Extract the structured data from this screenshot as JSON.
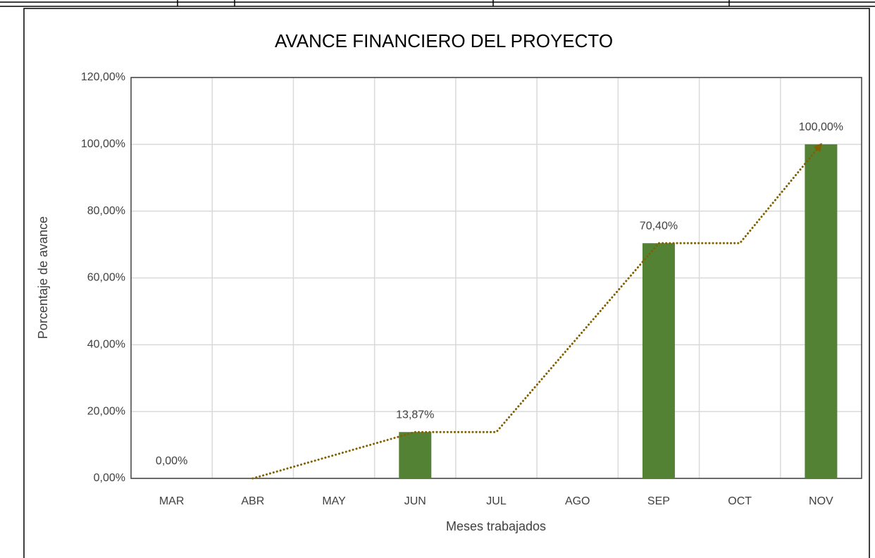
{
  "chart_data": {
    "type": "bar",
    "title": "AVANCE FINANCIERO DEL PROYECTO",
    "x_label": "Meses trabajados",
    "y_label": "Porcentaje de avance",
    "categories": [
      "MAR",
      "ABR",
      "MAY",
      "JUN",
      "JUL",
      "AGO",
      "SEP",
      "OCT",
      "NOV"
    ],
    "series": [
      {
        "type": "bar",
        "color": "#548235",
        "values": [
          0,
          null,
          null,
          13.87,
          null,
          null,
          70.4,
          null,
          100
        ],
        "value_labels": [
          "0,00%",
          null,
          null,
          "13,87%",
          null,
          null,
          "70,40%",
          null,
          "100,00%"
        ]
      },
      {
        "type": "line",
        "color": "#806000",
        "values": [
          null,
          0,
          6.94,
          13.87,
          13.87,
          42.14,
          70.4,
          70.4,
          100
        ]
      }
    ],
    "ylim": [
      0,
      120
    ],
    "yticks": [
      {
        "value": 0,
        "label": "0,00%"
      },
      {
        "value": 20,
        "label": "20,00%"
      },
      {
        "value": 40,
        "label": "40,00%"
      },
      {
        "value": 60,
        "label": "60,00%"
      },
      {
        "value": 80,
        "label": "80,00%"
      },
      {
        "value": 100,
        "label": "100,00%"
      },
      {
        "value": 120,
        "label": "120,00%"
      }
    ],
    "grid": true
  }
}
